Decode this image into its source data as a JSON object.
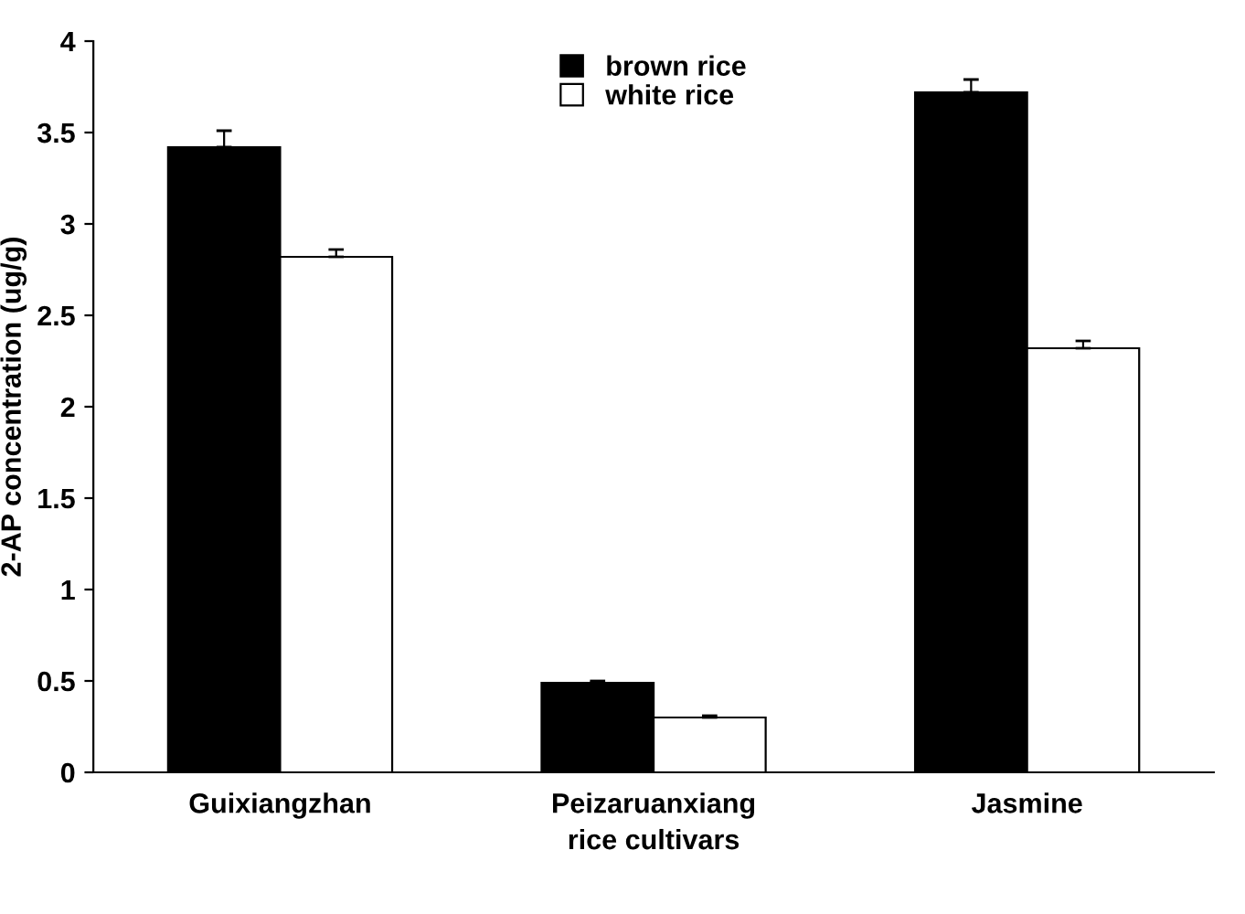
{
  "chart_data": {
    "type": "bar",
    "categories": [
      "Guixiangzhan",
      "Peizaruanxiang",
      "Jasmine"
    ],
    "series": [
      {
        "name": "brown rice",
        "color": "#000000",
        "values": [
          3.42,
          0.49,
          3.72
        ],
        "errors": [
          0.09,
          0.01,
          0.07
        ]
      },
      {
        "name": "white rice",
        "color": "#ffffff",
        "values": [
          2.82,
          0.3,
          2.32
        ],
        "errors": [
          0.04,
          0.01,
          0.04
        ]
      }
    ],
    "xlabel": "rice cultivars",
    "ylabel": "2-AP concentration (ug/g)",
    "ylim": [
      0,
      4
    ],
    "yticks": [
      0,
      0.5,
      1,
      1.5,
      2,
      2.5,
      3,
      3.5,
      4
    ],
    "grid": false,
    "legend": "top"
  }
}
